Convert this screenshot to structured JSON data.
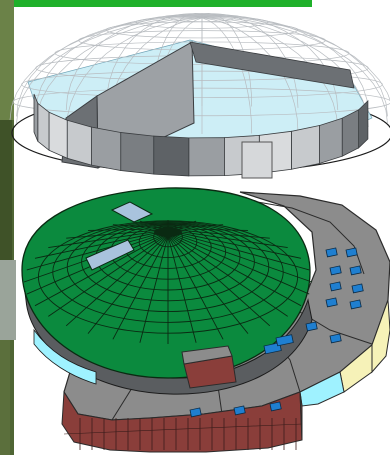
{
  "figure": {
    "top_model": "wireframe-dome-with-partial-wall",
    "bottom_model": "shaded-dome-building-with-annex"
  },
  "colors": {
    "dome_green": "#0b8a3e",
    "dome_grid": "#0a2a12",
    "wire_grey": "#b8bcc0",
    "glass_light_blue": "#cdeef6",
    "wall_dark_grey": "#5e6266",
    "wall_mid_grey": "#8a8e92",
    "wall_light_grey": "#c7cacd",
    "roof_grey": "#8c8c8c",
    "skylight_blue": "#a9c3dd",
    "window_blue": "#1f7fd0",
    "brick_red": "#8a3e3a",
    "cream_wall": "#f6f2b8",
    "cyan_glass": "#9ff2ff",
    "accent_green_bar": "#1fb02a",
    "foliage_left": "#5b6f3c"
  },
  "icons": [
    "compass-north-marker"
  ]
}
